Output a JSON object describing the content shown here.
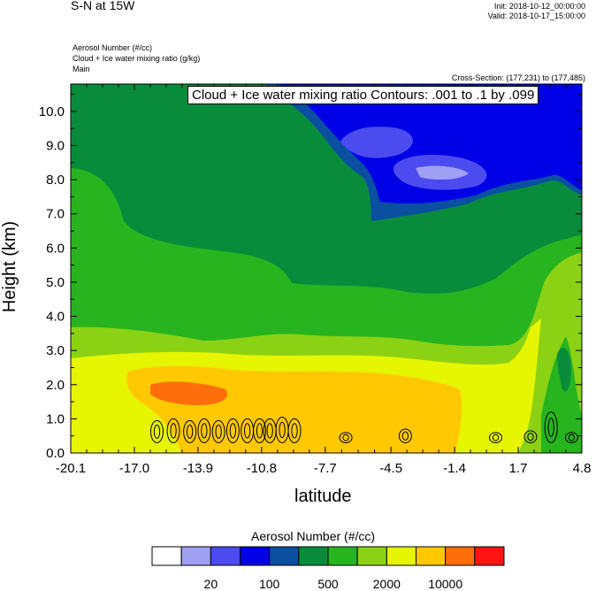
{
  "header": {
    "title": "S-N at 15W",
    "init": "Init: 2018-10-12_00:00:00",
    "valid": "Valid: 2018-10-17_15:00:00",
    "field1": "Aerosol Number   (#/cc)",
    "field2": "Cloud + Ice water mixing ratio   (g/kg)",
    "field3": "Main",
    "cross_section": "Cross-Section: (177,231) to (177,485)"
  },
  "chart_data": {
    "type": "heatmap",
    "contour_label": "Cloud + Ice water mixing ratio Contours: .001 to .1 by .099",
    "xlabel": "latitude",
    "ylabel": "Height (km)",
    "xlim": [
      -20.1,
      4.8
    ],
    "ylim": [
      0.0,
      10.8
    ],
    "x_ticks": [
      "-20.1",
      "-17.0",
      "-13.9",
      "-10.8",
      "-7.7",
      "-4.5",
      "-1.4",
      "1.7",
      "4.8"
    ],
    "x_tick_values": [
      -20.1,
      -17.0,
      -13.9,
      -10.8,
      -7.7,
      -4.5,
      -1.4,
      1.7,
      4.8
    ],
    "y_ticks": [
      "0.0",
      "1.0",
      "2.0",
      "3.0",
      "4.0",
      "5.0",
      "6.0",
      "7.0",
      "8.0",
      "9.0",
      "10.0"
    ],
    "y_tick_values": [
      0,
      1,
      2,
      3,
      4,
      5,
      6,
      7,
      8,
      9,
      10
    ],
    "colorbar": {
      "title": "Aerosol Number  (#/cc)",
      "colors": [
        "#ffffff",
        "#a0a0f5",
        "#4b4bf0",
        "#0000e6",
        "#0a4fa0",
        "#088c3c",
        "#28b41e",
        "#8cd214",
        "#e6f500",
        "#ffc800",
        "#ff6e0a",
        "#ff1414"
      ],
      "labels": [
        "20",
        "100",
        "500",
        "2000",
        "10000"
      ]
    },
    "contour_cells_x": [
      -15.9,
      -15.1,
      -14.3,
      -13.6,
      -12.9,
      -12.2,
      -11.5,
      -10.9,
      -10.4,
      -9.8,
      -9.2,
      -6.7,
      -3.8,
      0.6,
      2.3,
      3.3,
      4.3
    ],
    "contour_cells_height": [
      0.95,
      1.0,
      0.95,
      1.0,
      0.95,
      1.0,
      1.0,
      1.0,
      1.0,
      1.05,
      1.0,
      0.6,
      0.7,
      0.6,
      0.65,
      1.2,
      0.6
    ]
  }
}
